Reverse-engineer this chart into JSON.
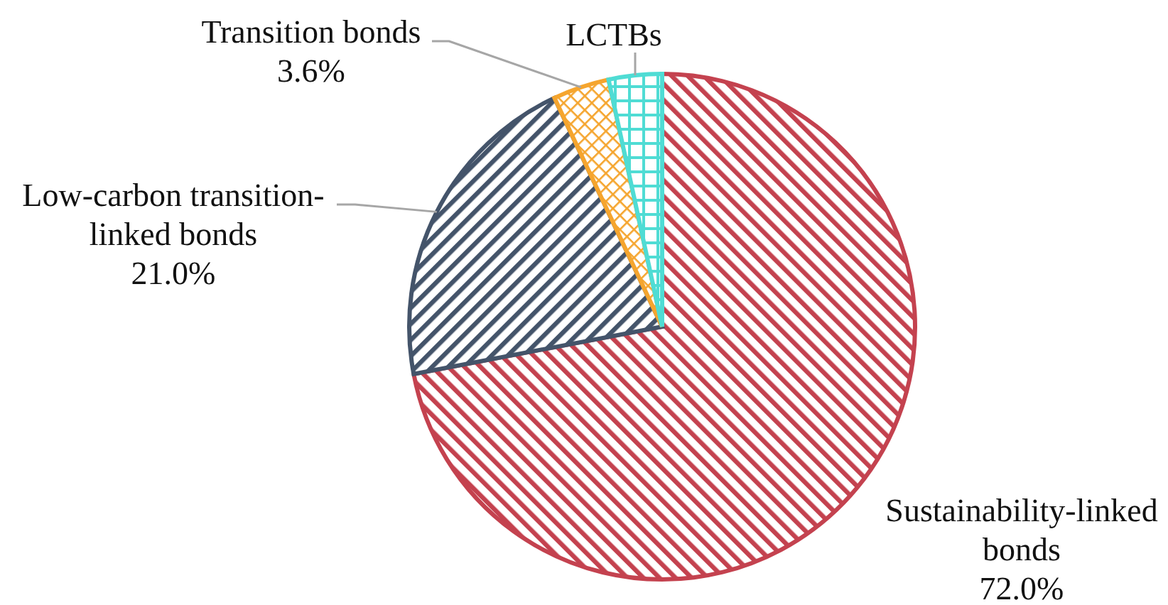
{
  "chart_data": {
    "type": "pie",
    "categories": [
      "Sustainability-linked bonds",
      "Low-carbon transition-linked bonds",
      "Transition bonds",
      "LCTBs"
    ],
    "values": [
      72.0,
      21.0,
      3.6,
      3.4
    ],
    "value_labels": [
      "72.0%",
      "21.0%",
      "3.6%",
      null
    ],
    "colors": [
      "#c4424f",
      "#44546a",
      "#f5a52e",
      "#4fdcd4"
    ]
  }
}
